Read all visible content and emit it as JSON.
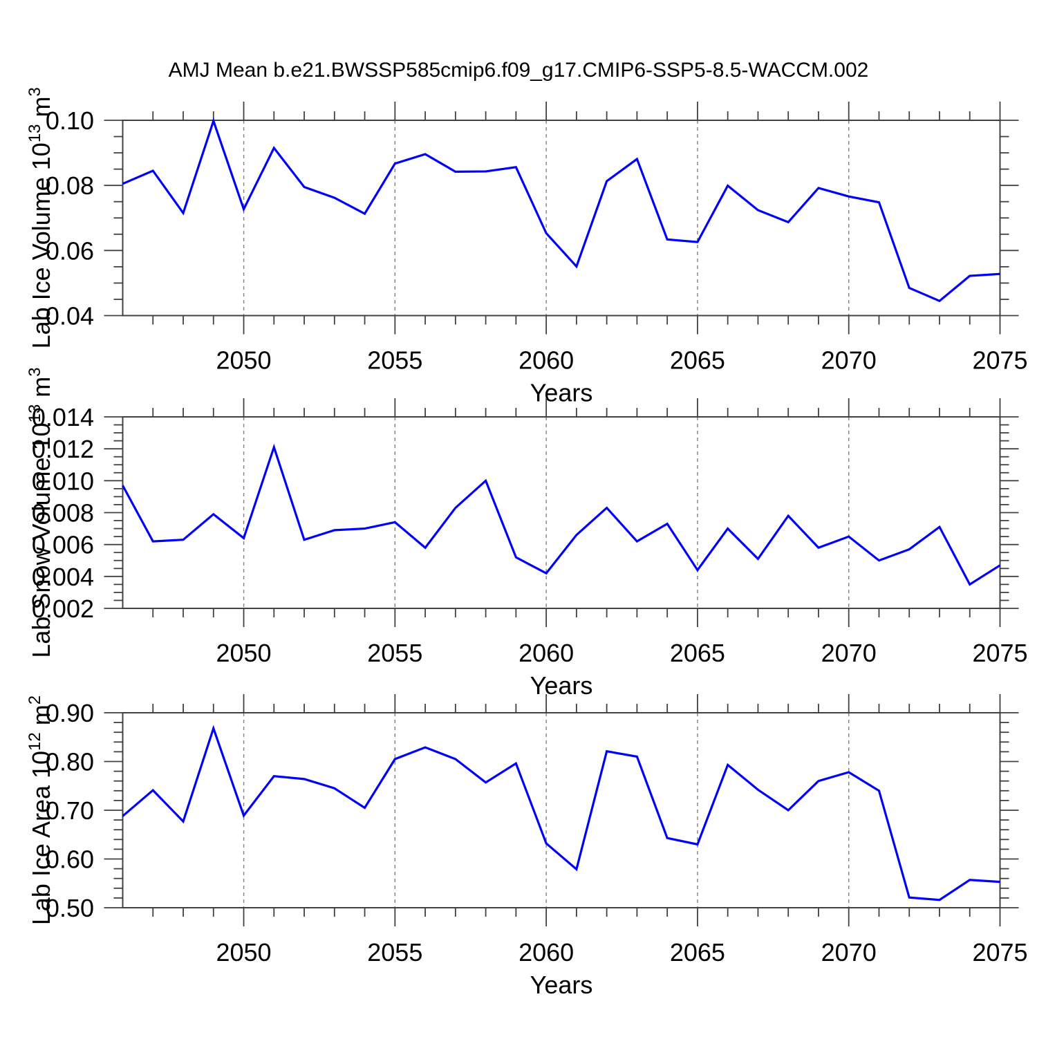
{
  "title": "AMJ Mean b.e21.BWSSP585cmip6.f09_g17.CMIP6-SSP5-8.5-WACCM.002",
  "colors": {
    "line": "#0000ff",
    "frame": "#404040",
    "grid": "#7f7f7f",
    "text": "#000000",
    "background": "#ffffff"
  },
  "chart_data": [
    {
      "type": "line",
      "id": "lab-ice-volume",
      "ylabel": {
        "prefix": "Lab Ice Volume 10",
        "exponent": "13",
        "unit": " m",
        "unit_exponent": "3"
      },
      "xlabel": "Years",
      "x": [
        2046,
        2047,
        2048,
        2049,
        2050,
        2051,
        2052,
        2053,
        2054,
        2055,
        2056,
        2057,
        2058,
        2059,
        2060,
        2061,
        2062,
        2063,
        2064,
        2065,
        2066,
        2067,
        2068,
        2069,
        2070,
        2071,
        2072,
        2073,
        2074,
        2075
      ],
      "values": [
        0.0805,
        0.0845,
        0.0715,
        0.0998,
        0.0727,
        0.0915,
        0.0795,
        0.0762,
        0.0713,
        0.0867,
        0.0896,
        0.0842,
        0.0843,
        0.0856,
        0.0653,
        0.0551,
        0.0813,
        0.0881,
        0.0634,
        0.0626,
        0.0799,
        0.0724,
        0.0687,
        0.0792,
        0.0766,
        0.0748,
        0.0485,
        0.0445,
        0.0522,
        0.0528
      ],
      "ylim": [
        0.04,
        0.1
      ],
      "y_major_step": 0.02,
      "y_minor_step": 0.005,
      "y_tick_decimals": 2,
      "y_tick_labels": [
        "0.04",
        "0.06",
        "0.08",
        "0.10"
      ],
      "xlim": [
        2046,
        2075
      ],
      "x_major_ticks": [
        2050,
        2055,
        2060,
        2065,
        2070,
        2075
      ],
      "x_minor_step": 1,
      "grid_years": [
        2050,
        2055,
        2060,
        2065,
        2070
      ],
      "line_color": "#0000ff"
    },
    {
      "type": "line",
      "id": "lab-snow-volume",
      "ylabel": {
        "prefix": "Lab Snow Volume 10",
        "exponent": "13",
        "unit": " m",
        "unit_exponent": "3"
      },
      "xlabel": "Years",
      "x": [
        2046,
        2047,
        2048,
        2049,
        2050,
        2051,
        2052,
        2053,
        2054,
        2055,
        2056,
        2057,
        2058,
        2059,
        2060,
        2061,
        2062,
        2063,
        2064,
        2065,
        2066,
        2067,
        2068,
        2069,
        2070,
        2071,
        2072,
        2073,
        2074,
        2075
      ],
      "values": [
        0.0097,
        0.0062,
        0.0063,
        0.0079,
        0.0064,
        0.0121,
        0.0063,
        0.0069,
        0.007,
        0.0074,
        0.0058,
        0.0083,
        0.01,
        0.0052,
        0.0042,
        0.0066,
        0.0083,
        0.0062,
        0.0073,
        0.0044,
        0.007,
        0.0051,
        0.0078,
        0.0058,
        0.0065,
        0.005,
        0.0057,
        0.0071,
        0.0035,
        0.0047
      ],
      "ylim": [
        0.002,
        0.014
      ],
      "y_major_step": 0.002,
      "y_minor_step": 0.0005,
      "y_tick_decimals": 3,
      "y_tick_labels": [
        "0.002",
        "0.004",
        "0.006",
        "0.008",
        "0.010",
        "0.012",
        "0.014"
      ],
      "xlim": [
        2046,
        2075
      ],
      "x_major_ticks": [
        2050,
        2055,
        2060,
        2065,
        2070,
        2075
      ],
      "x_minor_step": 1,
      "grid_years": [
        2050,
        2055,
        2060,
        2065,
        2070
      ],
      "line_color": "#0000ff"
    },
    {
      "type": "line",
      "id": "lab-ice-area",
      "ylabel": {
        "prefix": "Lab Ice Area 10",
        "exponent": "12",
        "unit": " m",
        "unit_exponent": "2"
      },
      "xlabel": "Years",
      "x": [
        2046,
        2047,
        2048,
        2049,
        2050,
        2051,
        2052,
        2053,
        2054,
        2055,
        2056,
        2057,
        2058,
        2059,
        2060,
        2061,
        2062,
        2063,
        2064,
        2065,
        2066,
        2067,
        2068,
        2069,
        2070,
        2071,
        2072,
        2073,
        2074,
        2075
      ],
      "values": [
        0.688,
        0.741,
        0.677,
        0.868,
        0.689,
        0.77,
        0.764,
        0.745,
        0.705,
        0.805,
        0.829,
        0.805,
        0.757,
        0.796,
        0.632,
        0.579,
        0.821,
        0.81,
        0.643,
        0.63,
        0.793,
        0.742,
        0.7,
        0.76,
        0.778,
        0.74,
        0.521,
        0.516,
        0.557,
        0.553
      ],
      "ylim": [
        0.5,
        0.9
      ],
      "y_major_step": 0.1,
      "y_minor_step": 0.02,
      "y_tick_decimals": 2,
      "y_tick_labels": [
        "0.50",
        "0.60",
        "0.70",
        "0.80",
        "0.90"
      ],
      "xlim": [
        2046,
        2075
      ],
      "x_major_ticks": [
        2050,
        2055,
        2060,
        2065,
        2070,
        2075
      ],
      "x_minor_step": 1,
      "grid_years": [
        2050,
        2055,
        2060,
        2065,
        2070
      ],
      "line_color": "#0000ff"
    }
  ]
}
